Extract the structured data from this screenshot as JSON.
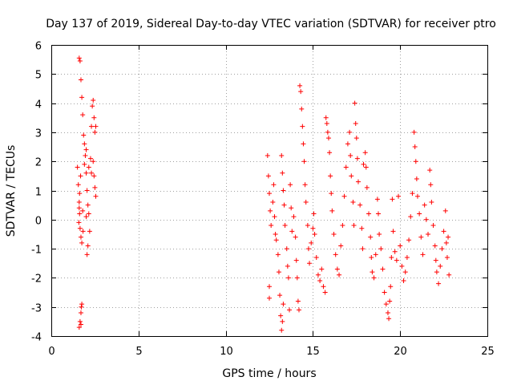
{
  "chart_data": {
    "type": "scatter",
    "title": "Day 137 of 2019, Sidereal Day-to-day VTEC variation (SDTVAR) for receiver ptro",
    "xlabel": "GPS time / hours",
    "ylabel": "SDTVAR / TECUs",
    "xlim": [
      0,
      25
    ],
    "ylim": [
      -4,
      6
    ],
    "xticks": [
      0,
      5,
      10,
      15,
      20,
      25
    ],
    "yticks": [
      -4,
      -3,
      -2,
      -1,
      0,
      1,
      2,
      3,
      4,
      5,
      6
    ],
    "grid": true,
    "marker": "+",
    "color": "#ff0000",
    "series": [
      {
        "name": "SDTVAR",
        "points": [
          [
            1.5,
            1.8
          ],
          [
            1.55,
            1.2
          ],
          [
            1.6,
            0.6
          ],
          [
            1.62,
            0.2
          ],
          [
            1.65,
            -0.3
          ],
          [
            1.7,
            -0.6
          ],
          [
            1.75,
            -0.8
          ],
          [
            1.58,
            -0.1
          ],
          [
            1.6,
            0.4
          ],
          [
            1.68,
            1.5
          ],
          [
            1.6,
            5.55
          ],
          [
            1.65,
            5.45
          ],
          [
            1.7,
            4.8
          ],
          [
            1.75,
            4.2
          ],
          [
            1.8,
            3.6
          ],
          [
            1.85,
            2.9
          ],
          [
            1.9,
            2.6
          ],
          [
            1.95,
            2.2
          ],
          [
            2.0,
            1.6
          ],
          [
            2.05,
            1.0
          ],
          [
            2.1,
            0.5
          ],
          [
            2.15,
            0.2
          ],
          [
            2.2,
            -0.4
          ],
          [
            2.1,
            -0.9
          ],
          [
            2.05,
            -1.2
          ],
          [
            2.0,
            0.1
          ],
          [
            1.8,
            0.3
          ],
          [
            1.9,
            1.9
          ],
          [
            2.0,
            2.4
          ],
          [
            2.15,
            1.8
          ],
          [
            2.25,
            2.1
          ],
          [
            2.3,
            3.2
          ],
          [
            2.35,
            3.9
          ],
          [
            2.4,
            4.1
          ],
          [
            2.45,
            3.5
          ],
          [
            2.5,
            3.0
          ],
          [
            2.55,
            3.2
          ],
          [
            2.4,
            2.0
          ],
          [
            2.45,
            1.5
          ],
          [
            2.5,
            1.1
          ],
          [
            2.55,
            0.8
          ],
          [
            2.3,
            1.6
          ],
          [
            1.75,
            -2.9
          ],
          [
            1.7,
            -3.2
          ],
          [
            1.65,
            -3.5
          ],
          [
            1.6,
            -3.7
          ],
          [
            1.7,
            -3.6
          ],
          [
            1.72,
            -3.0
          ],
          [
            1.82,
            -0.4
          ],
          [
            1.62,
            0.9
          ],
          [
            12.4,
            2.2
          ],
          [
            12.45,
            1.5
          ],
          [
            12.5,
            0.9
          ],
          [
            12.55,
            0.3
          ],
          [
            12.6,
            -0.2
          ],
          [
            12.7,
            0.6
          ],
          [
            12.75,
            1.2
          ],
          [
            12.8,
            0.1
          ],
          [
            12.85,
            -0.5
          ],
          [
            12.5,
            -2.3
          ],
          [
            12.5,
            -2.7
          ],
          [
            12.9,
            -0.7
          ],
          [
            13.0,
            -1.2
          ],
          [
            13.05,
            -1.8
          ],
          [
            13.1,
            -2.6
          ],
          [
            13.15,
            -3.3
          ],
          [
            13.2,
            -3.8
          ],
          [
            13.25,
            -3.5
          ],
          [
            13.3,
            -2.9
          ],
          [
            13.2,
            2.2
          ],
          [
            13.25,
            1.6
          ],
          [
            13.3,
            1.0
          ],
          [
            13.35,
            0.5
          ],
          [
            13.4,
            -0.2
          ],
          [
            13.5,
            -1.0
          ],
          [
            13.55,
            -1.6
          ],
          [
            13.6,
            -2.0
          ],
          [
            13.65,
            -3.1
          ],
          [
            13.7,
            1.2
          ],
          [
            13.75,
            0.4
          ],
          [
            13.8,
            -0.4
          ],
          [
            13.9,
            0.1
          ],
          [
            14.0,
            -0.6
          ],
          [
            14.05,
            -1.4
          ],
          [
            14.1,
            -2.0
          ],
          [
            14.15,
            -2.8
          ],
          [
            14.2,
            -3.1
          ],
          [
            14.25,
            4.6
          ],
          [
            14.3,
            4.4
          ],
          [
            14.35,
            3.8
          ],
          [
            14.4,
            3.2
          ],
          [
            14.45,
            2.6
          ],
          [
            14.5,
            2.0
          ],
          [
            14.55,
            1.2
          ],
          [
            14.6,
            0.6
          ],
          [
            14.7,
            -0.2
          ],
          [
            14.75,
            -1.0
          ],
          [
            14.8,
            -1.5
          ],
          [
            14.9,
            -0.8
          ],
          [
            15.0,
            -0.3
          ],
          [
            15.05,
            0.2
          ],
          [
            15.1,
            -0.5
          ],
          [
            15.2,
            -1.3
          ],
          [
            15.3,
            -1.9
          ],
          [
            15.4,
            -2.1
          ],
          [
            15.5,
            -1.7
          ],
          [
            15.6,
            -2.3
          ],
          [
            15.7,
            -2.5
          ],
          [
            15.75,
            3.5
          ],
          [
            15.8,
            3.3
          ],
          [
            15.85,
            3.0
          ],
          [
            15.9,
            2.8
          ],
          [
            15.95,
            2.3
          ],
          [
            16.0,
            1.5
          ],
          [
            16.05,
            0.9
          ],
          [
            16.1,
            0.3
          ],
          [
            16.2,
            -0.5
          ],
          [
            16.3,
            -1.2
          ],
          [
            16.4,
            -1.7
          ],
          [
            16.5,
            -1.9
          ],
          [
            16.6,
            -0.9
          ],
          [
            16.7,
            -0.2
          ],
          [
            16.8,
            0.8
          ],
          [
            16.9,
            1.8
          ],
          [
            17.0,
            2.6
          ],
          [
            17.1,
            3.0
          ],
          [
            17.15,
            2.2
          ],
          [
            17.2,
            1.5
          ],
          [
            17.3,
            0.6
          ],
          [
            17.35,
            -0.2
          ],
          [
            17.4,
            4.0
          ],
          [
            17.45,
            3.3
          ],
          [
            17.5,
            2.8
          ],
          [
            17.55,
            2.1
          ],
          [
            17.6,
            1.3
          ],
          [
            17.7,
            0.5
          ],
          [
            17.8,
            -0.3
          ],
          [
            17.85,
            -1.0
          ],
          [
            17.9,
            1.9
          ],
          [
            18.0,
            2.3
          ],
          [
            18.05,
            1.8
          ],
          [
            18.1,
            1.1
          ],
          [
            18.2,
            0.2
          ],
          [
            18.3,
            -0.6
          ],
          [
            18.35,
            -1.3
          ],
          [
            18.4,
            -1.8
          ],
          [
            18.5,
            -2.0
          ],
          [
            18.6,
            -1.2
          ],
          [
            18.7,
            0.7
          ],
          [
            18.75,
            0.2
          ],
          [
            18.8,
            -0.5
          ],
          [
            18.9,
            -1.0
          ],
          [
            19.0,
            -1.7
          ],
          [
            19.1,
            -2.5
          ],
          [
            19.2,
            -2.9
          ],
          [
            19.3,
            -3.2
          ],
          [
            19.35,
            -3.4
          ],
          [
            19.4,
            -2.8
          ],
          [
            19.45,
            -2.3
          ],
          [
            19.5,
            -1.3
          ],
          [
            19.55,
            0.7
          ],
          [
            19.6,
            -0.4
          ],
          [
            19.7,
            -1.1
          ],
          [
            19.8,
            -1.4
          ],
          [
            19.9,
            0.8
          ],
          [
            20.0,
            -0.9
          ],
          [
            20.1,
            -1.6
          ],
          [
            20.2,
            -2.1
          ],
          [
            20.3,
            -1.8
          ],
          [
            20.4,
            -1.3
          ],
          [
            20.5,
            -0.7
          ],
          [
            20.6,
            0.1
          ],
          [
            20.7,
            0.9
          ],
          [
            20.8,
            3.0
          ],
          [
            20.85,
            2.5
          ],
          [
            20.9,
            2.0
          ],
          [
            20.95,
            1.4
          ],
          [
            21.0,
            0.8
          ],
          [
            21.1,
            0.2
          ],
          [
            21.2,
            -0.6
          ],
          [
            21.3,
            -1.2
          ],
          [
            21.4,
            0.5
          ],
          [
            21.5,
            0.0
          ],
          [
            21.6,
            -0.5
          ],
          [
            21.7,
            1.7
          ],
          [
            21.75,
            1.2
          ],
          [
            21.8,
            0.6
          ],
          [
            21.9,
            -0.2
          ],
          [
            22.0,
            -0.9
          ],
          [
            22.05,
            -1.4
          ],
          [
            22.1,
            -1.8
          ],
          [
            22.2,
            -2.2
          ],
          [
            22.3,
            -1.6
          ],
          [
            22.4,
            -1.0
          ],
          [
            22.5,
            -0.4
          ],
          [
            22.6,
            0.3
          ],
          [
            22.65,
            -0.8
          ],
          [
            22.7,
            -1.3
          ],
          [
            22.75,
            -0.6
          ],
          [
            22.8,
            -1.9
          ]
        ]
      }
    ]
  }
}
